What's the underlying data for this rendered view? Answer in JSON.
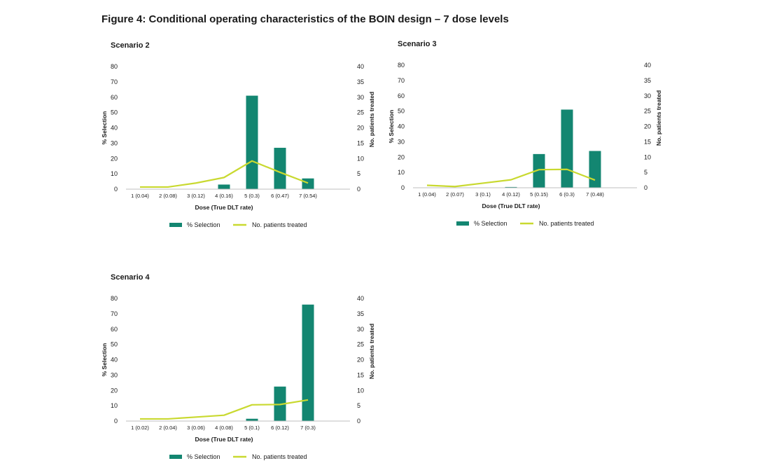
{
  "figure_title": "Figure 4: Conditional operating characteristics of the BOIN design – 7 dose levels",
  "colors": {
    "bar": "#138671",
    "line": "#c9d930",
    "axis": "#bfbfbf"
  },
  "chart_data": [
    {
      "type": "bar",
      "title": "Scenario 2",
      "categories": [
        "1 (0.04)",
        "2 (0.08)",
        "3 (0.12)",
        "4 (0.16)",
        "5 (0.3)",
        "6 (0.47)",
        "7 (0.54)"
      ],
      "series": [
        {
          "name": "% Selection",
          "type": "bar",
          "axis": "left",
          "values": [
            0,
            0,
            0,
            3,
            61,
            27,
            7
          ]
        },
        {
          "name": "No. patients treated",
          "type": "line",
          "axis": "right",
          "values": [
            0.7,
            0.7,
            2,
            3.8,
            9.2,
            5.5,
            2
          ]
        }
      ],
      "xlabel": "Dose (True DLT rate)",
      "ylabel": "% Selection",
      "y2label": "No. patients treated",
      "ylim": [
        0,
        80
      ],
      "yticks": [
        0,
        10,
        20,
        30,
        40,
        50,
        60,
        70,
        80
      ],
      "y2lim": [
        0,
        40
      ],
      "y2ticks": [
        0,
        5,
        10,
        15,
        20,
        25,
        30,
        35,
        40
      ],
      "grid": false,
      "legend": "bottom"
    },
    {
      "type": "bar",
      "title": "Scenario 3",
      "categories": [
        "1 (0.04)",
        "2 (0.07)",
        "3 (0.1)",
        "4 (0.12)",
        "5 (0.15)",
        "6 (0.3)",
        "7 (0.48)"
      ],
      "series": [
        {
          "name": "% Selection",
          "type": "bar",
          "axis": "left",
          "values": [
            0,
            0,
            0,
            0.5,
            22,
            51,
            24
          ]
        },
        {
          "name": "No. patients treated",
          "type": "line",
          "axis": "right",
          "values": [
            0.8,
            0.4,
            1.5,
            2.6,
            5.9,
            6,
            2.5
          ]
        }
      ],
      "xlabel": "Dose (True DLT rate)",
      "ylabel": "% Selection",
      "y2label": "No. patients treated",
      "ylim": [
        0,
        80
      ],
      "yticks": [
        0,
        10,
        20,
        30,
        40,
        50,
        60,
        70,
        80
      ],
      "y2lim": [
        0,
        40
      ],
      "y2ticks": [
        0,
        5,
        10,
        15,
        20,
        25,
        30,
        35,
        40
      ],
      "grid": false,
      "legend": "bottom"
    },
    {
      "type": "bar",
      "title": "Scenario 4",
      "categories": [
        "1 (0.02)",
        "2 (0.04)",
        "3 (0.06)",
        "4 (0.08)",
        "5 (0.1)",
        "6 (0.12)",
        "7 (0.3)"
      ],
      "series": [
        {
          "name": "% Selection",
          "type": "bar",
          "axis": "left",
          "values": [
            0,
            0,
            0,
            0,
            1.5,
            22.5,
            76
          ]
        },
        {
          "name": "No. patients treated",
          "type": "line",
          "axis": "right",
          "values": [
            0.7,
            0.7,
            1.3,
            1.9,
            5.3,
            5.4,
            6.9
          ]
        }
      ],
      "xlabel": "Dose (True DLT rate)",
      "ylabel": "% Selection",
      "y2label": "No. patients treated",
      "ylim": [
        0,
        80
      ],
      "yticks": [
        0,
        10,
        20,
        30,
        40,
        50,
        60,
        70,
        80
      ],
      "y2lim": [
        0,
        40
      ],
      "y2ticks": [
        0,
        5,
        10,
        15,
        20,
        25,
        30,
        35,
        40
      ],
      "grid": false,
      "legend": "bottom"
    }
  ]
}
